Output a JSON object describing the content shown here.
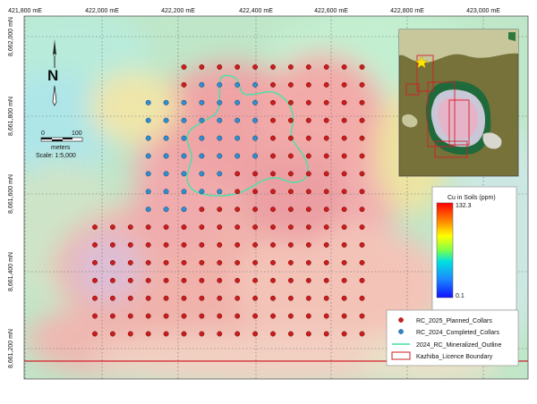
{
  "axes": {
    "x_ticks": [
      "421,800 mE",
      "422,000 mE",
      "422,200 mE",
      "422,400 mE",
      "422,600 mE",
      "422,800 mE",
      "423,000 mE"
    ],
    "y_ticks": [
      "8,662,000 mN",
      "8,661,800 mN",
      "8,661,600 mN",
      "8,661,400 mN",
      "8,661,200 mN"
    ]
  },
  "north_arrow": {
    "label": "N"
  },
  "scale_bar": {
    "start": "0",
    "end": "100",
    "unit": "meters",
    "scale_text": "Scale: 1:5,000"
  },
  "colorbar": {
    "title": "Cu in Soils (ppm)",
    "max": "132.3",
    "min": "0.1"
  },
  "legend": {
    "items": [
      {
        "label": "RC_2025_Planned_Collars",
        "symbol": "red-dot",
        "color": "#c81e1e"
      },
      {
        "label": "RC_2024_Completed_Collars",
        "symbol": "blue-dot",
        "color": "#2a86c8"
      },
      {
        "label": "2024_RC_Mineralized_Outline",
        "symbol": "green-line",
        "color": "#3fe0a0"
      },
      {
        "label": "Kazhiba_Licence Boundary",
        "symbol": "red-box",
        "color": "#c81e1e"
      }
    ]
  },
  "map_layers": {
    "heatmap": "Cu in soils gradient",
    "collars_planned_color": "#c81e1e",
    "collars_completed_color": "#2f8fd0",
    "outline_color": "#45e3a8",
    "licence_color": "#d0202a"
  },
  "inset_map": {
    "star_color": "#ffe600"
  }
}
